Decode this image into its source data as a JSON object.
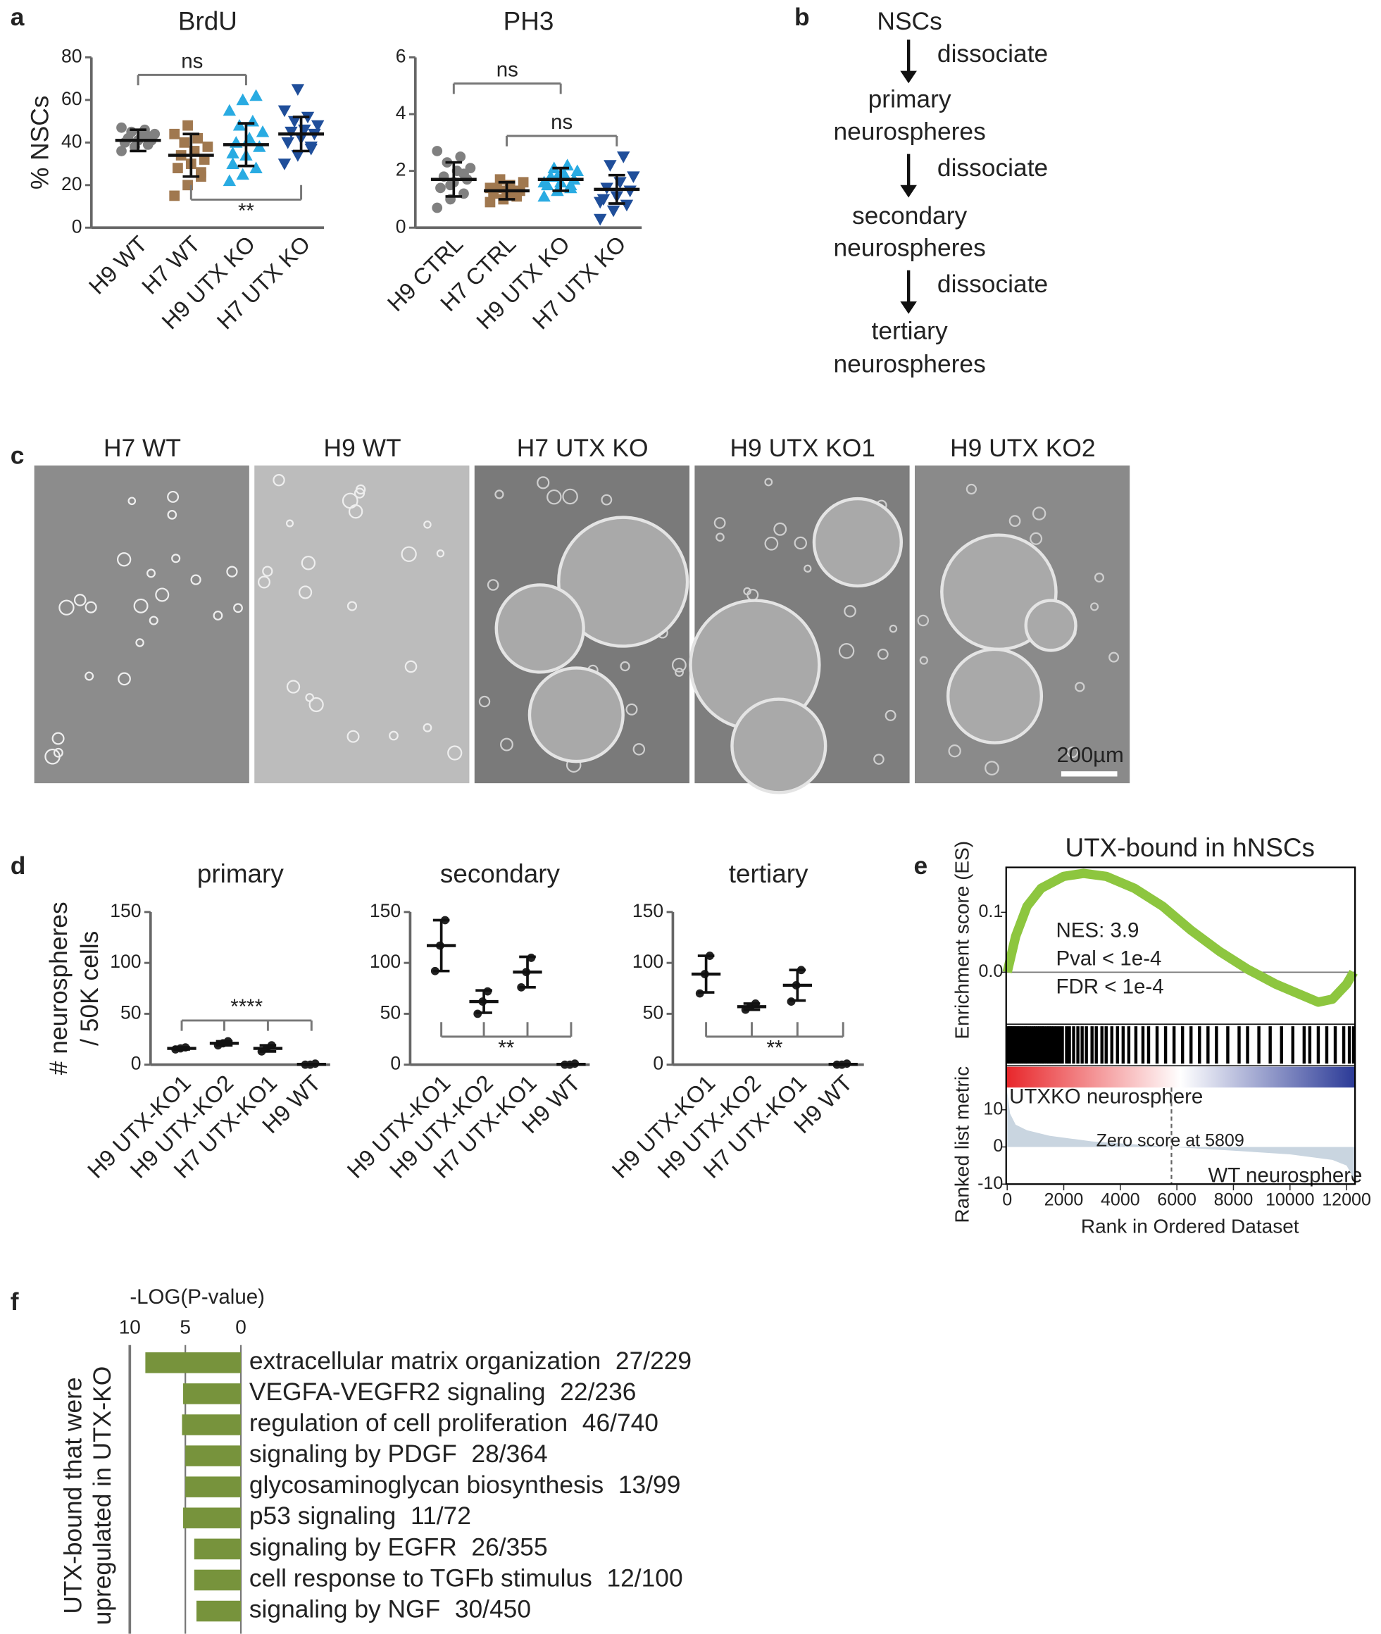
{
  "panel_labels": [
    "a",
    "b",
    "c",
    "d",
    "e",
    "f"
  ],
  "flowchart": {
    "nodes": [
      [
        "NSCs"
      ],
      [
        "primary",
        "neurospheres"
      ],
      [
        "secondary",
        "neurospheres"
      ],
      [
        "tertiary",
        "neurospheres"
      ]
    ],
    "edge_labels": [
      "dissociate",
      "dissociate",
      "dissociate"
    ]
  },
  "micrographs": {
    "titles": [
      "H7 WT",
      "H9 WT",
      "H7 UTX KO",
      "H9 UTX KO1",
      "H9 UTX KO2"
    ],
    "scale_bar": "200µm"
  },
  "chart_data": [
    {
      "type": "dotplot",
      "title": "BrdU",
      "y_label": "% NSCs",
      "categories": [
        "H9 WT",
        "H7 WT",
        "H9 UTX KO",
        "H7 UTX KO"
      ],
      "ylim": [
        0,
        80
      ],
      "yticks": [
        0,
        20,
        40,
        60,
        80
      ],
      "groups": [
        {
          "color": "#808080",
          "marker": "circle",
          "mean": 41,
          "sd": 5,
          "points": [
            36,
            38,
            39,
            40,
            41,
            41,
            42,
            43,
            44,
            45,
            46,
            47,
            38,
            43
          ]
        },
        {
          "color": "#a0784f",
          "marker": "square",
          "mean": 34,
          "sd": 10,
          "points": [
            15,
            20,
            24,
            28,
            30,
            32,
            34,
            36,
            38,
            40,
            42,
            44,
            48,
            26
          ]
        },
        {
          "color": "#29abe2",
          "marker": "triangle-up",
          "mean": 39,
          "sd": 10,
          "points": [
            22,
            25,
            28,
            30,
            34,
            38,
            40,
            42,
            45,
            48,
            50,
            55,
            60,
            62,
            35
          ]
        },
        {
          "color": "#1f4e9a",
          "marker": "triangle-down",
          "mean": 44,
          "sd": 8,
          "points": [
            30,
            34,
            37,
            40,
            42,
            44,
            45,
            46,
            48,
            50,
            52,
            55,
            65,
            38
          ]
        }
      ],
      "brackets": [
        {
          "groups": [
            0,
            2
          ],
          "label": "ns",
          "position": "top"
        },
        {
          "groups": [
            1,
            3
          ],
          "label": "**",
          "position": "bottom"
        }
      ]
    },
    {
      "type": "dotplot",
      "title": "PH3",
      "categories": [
        "H9 CTRL",
        "H7 CTRL",
        "H9 UTX KO",
        "H7 UTX KO"
      ],
      "ylim": [
        0,
        6
      ],
      "yticks": [
        0,
        2,
        4,
        6
      ],
      "groups": [
        {
          "color": "#808080",
          "marker": "circle",
          "mean": 1.7,
          "sd": 0.6,
          "points": [
            0.7,
            1.0,
            1.2,
            1.4,
            1.6,
            1.7,
            1.8,
            2.0,
            2.1,
            2.3,
            2.5,
            2.7,
            1.5,
            1.9
          ]
        },
        {
          "color": "#a0784f",
          "marker": "square",
          "mean": 1.3,
          "sd": 0.3,
          "points": [
            0.9,
            1.0,
            1.1,
            1.2,
            1.3,
            1.3,
            1.4,
            1.5,
            1.6,
            1.7,
            1.2,
            1.4
          ]
        },
        {
          "color": "#29abe2",
          "marker": "triangle-up",
          "mean": 1.7,
          "sd": 0.4,
          "points": [
            1.1,
            1.3,
            1.4,
            1.5,
            1.6,
            1.7,
            1.8,
            1.9,
            2.0,
            2.1,
            2.2,
            1.6,
            1.8,
            1.5
          ]
        },
        {
          "color": "#1f4e9a",
          "marker": "triangle-down",
          "mean": 1.35,
          "sd": 0.5,
          "points": [
            0.3,
            0.6,
            0.8,
            1.0,
            1.1,
            1.3,
            1.4,
            1.6,
            1.8,
            2.2,
            2.5,
            0.9
          ]
        }
      ],
      "brackets": [
        {
          "groups": [
            0,
            2
          ],
          "label": "ns",
          "position": "top"
        },
        {
          "groups": [
            1,
            3
          ],
          "label": "ns",
          "position": "top"
        }
      ]
    },
    {
      "type": "dotplot",
      "title": "primary",
      "y_label": [
        "# neurospheres",
        "/ 50K cells"
      ],
      "categories": [
        "H9 UTX-KO1",
        "H9 UTX-KO2",
        "H7 UTX-KO1",
        "H9 WT"
      ],
      "ylim": [
        0,
        150
      ],
      "yticks": [
        0,
        50,
        100,
        150
      ],
      "groups": [
        {
          "color": "#222222",
          "marker": "circle",
          "mean": 16,
          "sd": 1,
          "points": [
            15,
            16,
            17
          ]
        },
        {
          "color": "#222222",
          "marker": "circle",
          "mean": 21,
          "sd": 2,
          "points": [
            19,
            21,
            23
          ]
        },
        {
          "color": "#222222",
          "marker": "circle",
          "mean": 16,
          "sd": 3,
          "points": [
            13,
            16,
            19
          ]
        },
        {
          "color": "#222222",
          "marker": "circle",
          "mean": 0.3,
          "sd": 0,
          "points": [
            0,
            0,
            1
          ]
        }
      ],
      "brackets": [
        {
          "groups": [
            0,
            1,
            2,
            3
          ],
          "label": "****",
          "position": "top"
        }
      ]
    },
    {
      "type": "dotplot",
      "title": "secondary",
      "categories": [
        "H9 UTX-KO1",
        "H9 UTX-KO2",
        "H7 UTX-KO1",
        "H9 WT"
      ],
      "ylim": [
        0,
        150
      ],
      "yticks": [
        0,
        50,
        100,
        150
      ],
      "groups": [
        {
          "color": "#222222",
          "marker": "circle",
          "mean": 117,
          "sd": 25,
          "points": [
            92,
            117,
            142
          ]
        },
        {
          "color": "#222222",
          "marker": "circle",
          "mean": 62,
          "sd": 11,
          "points": [
            50,
            62,
            72
          ]
        },
        {
          "color": "#222222",
          "marker": "circle",
          "mean": 91,
          "sd": 15,
          "points": [
            76,
            91,
            105
          ]
        },
        {
          "color": "#222222",
          "marker": "circle",
          "mean": 0.3,
          "sd": 0,
          "points": [
            0,
            0,
            1
          ]
        }
      ],
      "brackets": [
        {
          "groups": [
            0,
            1,
            2,
            3
          ],
          "label": "**",
          "position": "bottom"
        }
      ]
    },
    {
      "type": "dotplot",
      "title": "tertiary",
      "categories": [
        "H9 UTX-KO1",
        "H9 UTX-KO2",
        "H7 UTX-KO1",
        "H9 WT"
      ],
      "ylim": [
        0,
        150
      ],
      "yticks": [
        0,
        50,
        100,
        150
      ],
      "groups": [
        {
          "color": "#222222",
          "marker": "circle",
          "mean": 89,
          "sd": 18,
          "points": [
            70,
            89,
            107
          ]
        },
        {
          "color": "#222222",
          "marker": "circle",
          "mean": 57,
          "sd": 3,
          "points": [
            54,
            57,
            60
          ]
        },
        {
          "color": "#222222",
          "marker": "circle",
          "mean": 78,
          "sd": 15,
          "points": [
            62,
            78,
            93
          ]
        },
        {
          "color": "#222222",
          "marker": "circle",
          "mean": 0.3,
          "sd": 0,
          "points": [
            0,
            0,
            1
          ]
        }
      ],
      "brackets": [
        {
          "groups": [
            0,
            1,
            2,
            3
          ],
          "label": "**",
          "position": "bottom"
        }
      ]
    },
    {
      "type": "gsea",
      "title": "UTX-bound in hNSCs",
      "y_label": "Enrichment score (ES)",
      "metric_label": "Ranked list metric",
      "x_label": "Rank in Ordered Dataset",
      "xlim": [
        0,
        12300
      ],
      "xticks": [
        0,
        2000,
        4000,
        6000,
        8000,
        10000,
        12000
      ],
      "ylim": [
        -0.085,
        0.175
      ],
      "yticks": [
        {
          "value": 0,
          "label": "0.0"
        },
        0.1
      ],
      "es": {
        "color": "#8dc63f",
        "x": [
          0,
          300,
          700,
          1200,
          2000,
          2700,
          3500,
          4500,
          5500,
          6500,
          7500,
          8500,
          9500,
          10500,
          11000,
          11500,
          12000,
          12250
        ],
        "values": [
          0.0,
          0.06,
          0.11,
          0.14,
          0.16,
          0.165,
          0.16,
          0.14,
          0.11,
          0.07,
          0.035,
          0.005,
          -0.02,
          -0.04,
          -0.05,
          -0.045,
          -0.02,
          0.0
        ]
      },
      "annotations": [
        "NES: 3.9",
        "Pval < 1e-4",
        "FDR < 1e-4"
      ],
      "hits": [
        20,
        60,
        110,
        150,
        200,
        260,
        310,
        380,
        430,
        500,
        560,
        640,
        700,
        780,
        850,
        930,
        1000,
        1080,
        1150,
        1230,
        1300,
        1400,
        1480,
        1560,
        1650,
        1750,
        1850,
        1950,
        2100,
        2200,
        2350,
        2500,
        2650,
        2800,
        3000,
        3150,
        3350,
        3500,
        3700,
        3900,
        4100,
        4300,
        4550,
        4800,
        5000,
        5300,
        5600,
        5900,
        6200,
        6500,
        6800,
        7100,
        7400,
        7800,
        8200,
        8500,
        8900,
        9300,
        9700,
        10100,
        10500,
        10700,
        11000,
        11300,
        11600,
        11900,
        12100,
        12250
      ],
      "metric": {
        "color": "#c9d5e0",
        "x": [
          0,
          100,
          300,
          700,
          1500,
          3000,
          5809,
          8000,
          10000,
          11500,
          12000,
          12300
        ],
        "values": [
          15,
          9,
          6,
          4.5,
          3,
          1.5,
          0,
          -1,
          -2,
          -3.5,
          -5,
          -9
        ]
      },
      "metric_ylim": [
        -10,
        16
      ],
      "metric_yticks": [
        10,
        0,
        -10
      ],
      "zero_score": {
        "value": 5809,
        "label": "Zero score at 5809"
      },
      "gradient_labels": [
        {
          "label": "UTXKO neurosphere",
          "color": "#e8262a"
        },
        {
          "label": "WT neurosphere",
          "color": "#2b3a97"
        }
      ]
    },
    {
      "type": "bar",
      "orientation": "horizontal",
      "x_label": "-LOG(P-value)",
      "y_label": [
        "UTX-bound that were",
        "upregulated in UTX-KO"
      ],
      "color": "#77933c",
      "grid": true,
      "xlim": [
        10,
        0
      ],
      "xticks": [
        10,
        5,
        0
      ],
      "categories": [
        "extracellular matrix organization",
        "VEGFA-VEGFR2 signaling",
        "regulation of cell proliferation",
        "signaling by PDGF",
        "glycosaminoglycan biosynthesis",
        "p53 signaling",
        "signaling by EGFR",
        "cell response to TGFb stimulus",
        "signaling by NGF"
      ],
      "counts": [
        "27/229",
        "22/236",
        "46/740",
        "28/364",
        "13/99",
        "11/72",
        "26/355",
        "12/100",
        "30/450"
      ],
      "values": [
        8.6,
        5.2,
        5.3,
        5.0,
        5.0,
        5.2,
        4.2,
        4.2,
        4.0
      ]
    }
  ]
}
